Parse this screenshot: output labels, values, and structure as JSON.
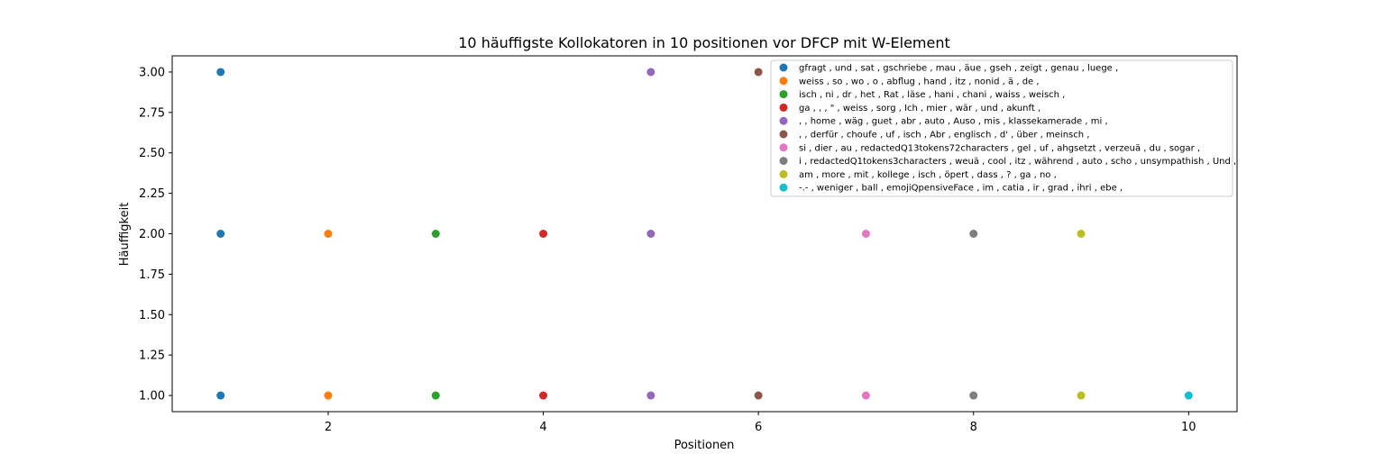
{
  "chart_data": {
    "type": "scatter",
    "title": "10 häuffigste Kollokatoren in 10 positionen vor DFCP mit W-Element",
    "xlabel": "Positionen",
    "ylabel": "Häuffigkeit",
    "xlim": [
      0.55,
      10.45
    ],
    "ylim": [
      0.9,
      3.1
    ],
    "xticks": [
      2,
      4,
      6,
      8,
      10
    ],
    "yticks": [
      1.0,
      1.25,
      1.5,
      1.75,
      2.0,
      2.25,
      2.5,
      2.75,
      3.0
    ],
    "xtick_labels": [
      "2",
      "4",
      "6",
      "8",
      "10"
    ],
    "ytick_labels": [
      "1.00",
      "1.25",
      "1.50",
      "1.75",
      "2.00",
      "2.25",
      "2.50",
      "2.75",
      "3.00"
    ],
    "grid": false,
    "legend_position": "top-right",
    "series": [
      {
        "name": "gfragt , und , sat , gschriebe , mau , äue , gseh , zeigt , genau , luege ,",
        "color": "#1f77b4",
        "x": [
          1,
          1,
          1
        ],
        "y": [
          3,
          2,
          1
        ]
      },
      {
        "name": "weiss , so , wo , o , abflug , hand , itz , nonid , ä , de ,",
        "color": "#ff7f0e",
        "x": [
          2,
          2
        ],
        "y": [
          2,
          1
        ]
      },
      {
        "name": "isch , ni , dr , het , Rat , läse , hani , chani , waiss , weisch ,",
        "color": "#2ca02c",
        "x": [
          3,
          3
        ],
        "y": [
          2,
          1
        ]
      },
      {
        "name": "ga , , , \" , weiss , sorg , Ich , mier , wär , und , akunft ,",
        "color": "#d62728",
        "x": [
          4,
          4
        ],
        "y": [
          2,
          1
        ]
      },
      {
        "name": ", , home , wäg , guet , abr , auto , Auso , mis , klassekamerade , mi ,",
        "color": "#9467bd",
        "x": [
          5,
          5,
          5
        ],
        "y": [
          3,
          2,
          1
        ]
      },
      {
        "name": ", , derfür , choufe , uf , isch , Abr , englisch , d' , über , meinsch ,",
        "color": "#8c564b",
        "x": [
          6,
          6
        ],
        "y": [
          3,
          1
        ]
      },
      {
        "name": "si , dier , au , redactedQ13tokens72characters , gel , uf , ahgsetzt , verzeuä , du , sogar ,",
        "color": "#e377c2",
        "x": [
          7,
          7
        ],
        "y": [
          2,
          1
        ]
      },
      {
        "name": "i , redactedQ1tokens3characters , weuä , cool , itz , während , auto , scho , unsympathish , Und ,",
        "color": "#7f7f7f",
        "x": [
          8,
          8
        ],
        "y": [
          2,
          1
        ]
      },
      {
        "name": "am , more , mit , kollege , isch , öpert , dass , ? , ga , no ,",
        "color": "#bcbd22",
        "x": [
          9,
          9
        ],
        "y": [
          2,
          1
        ]
      },
      {
        "name": "-.- , weniger , ball , emojiQpensiveFace , im , catia , ir , grad , ihri , ebe ,",
        "color": "#17becf",
        "x": [
          10
        ],
        "y": [
          1
        ]
      }
    ]
  }
}
